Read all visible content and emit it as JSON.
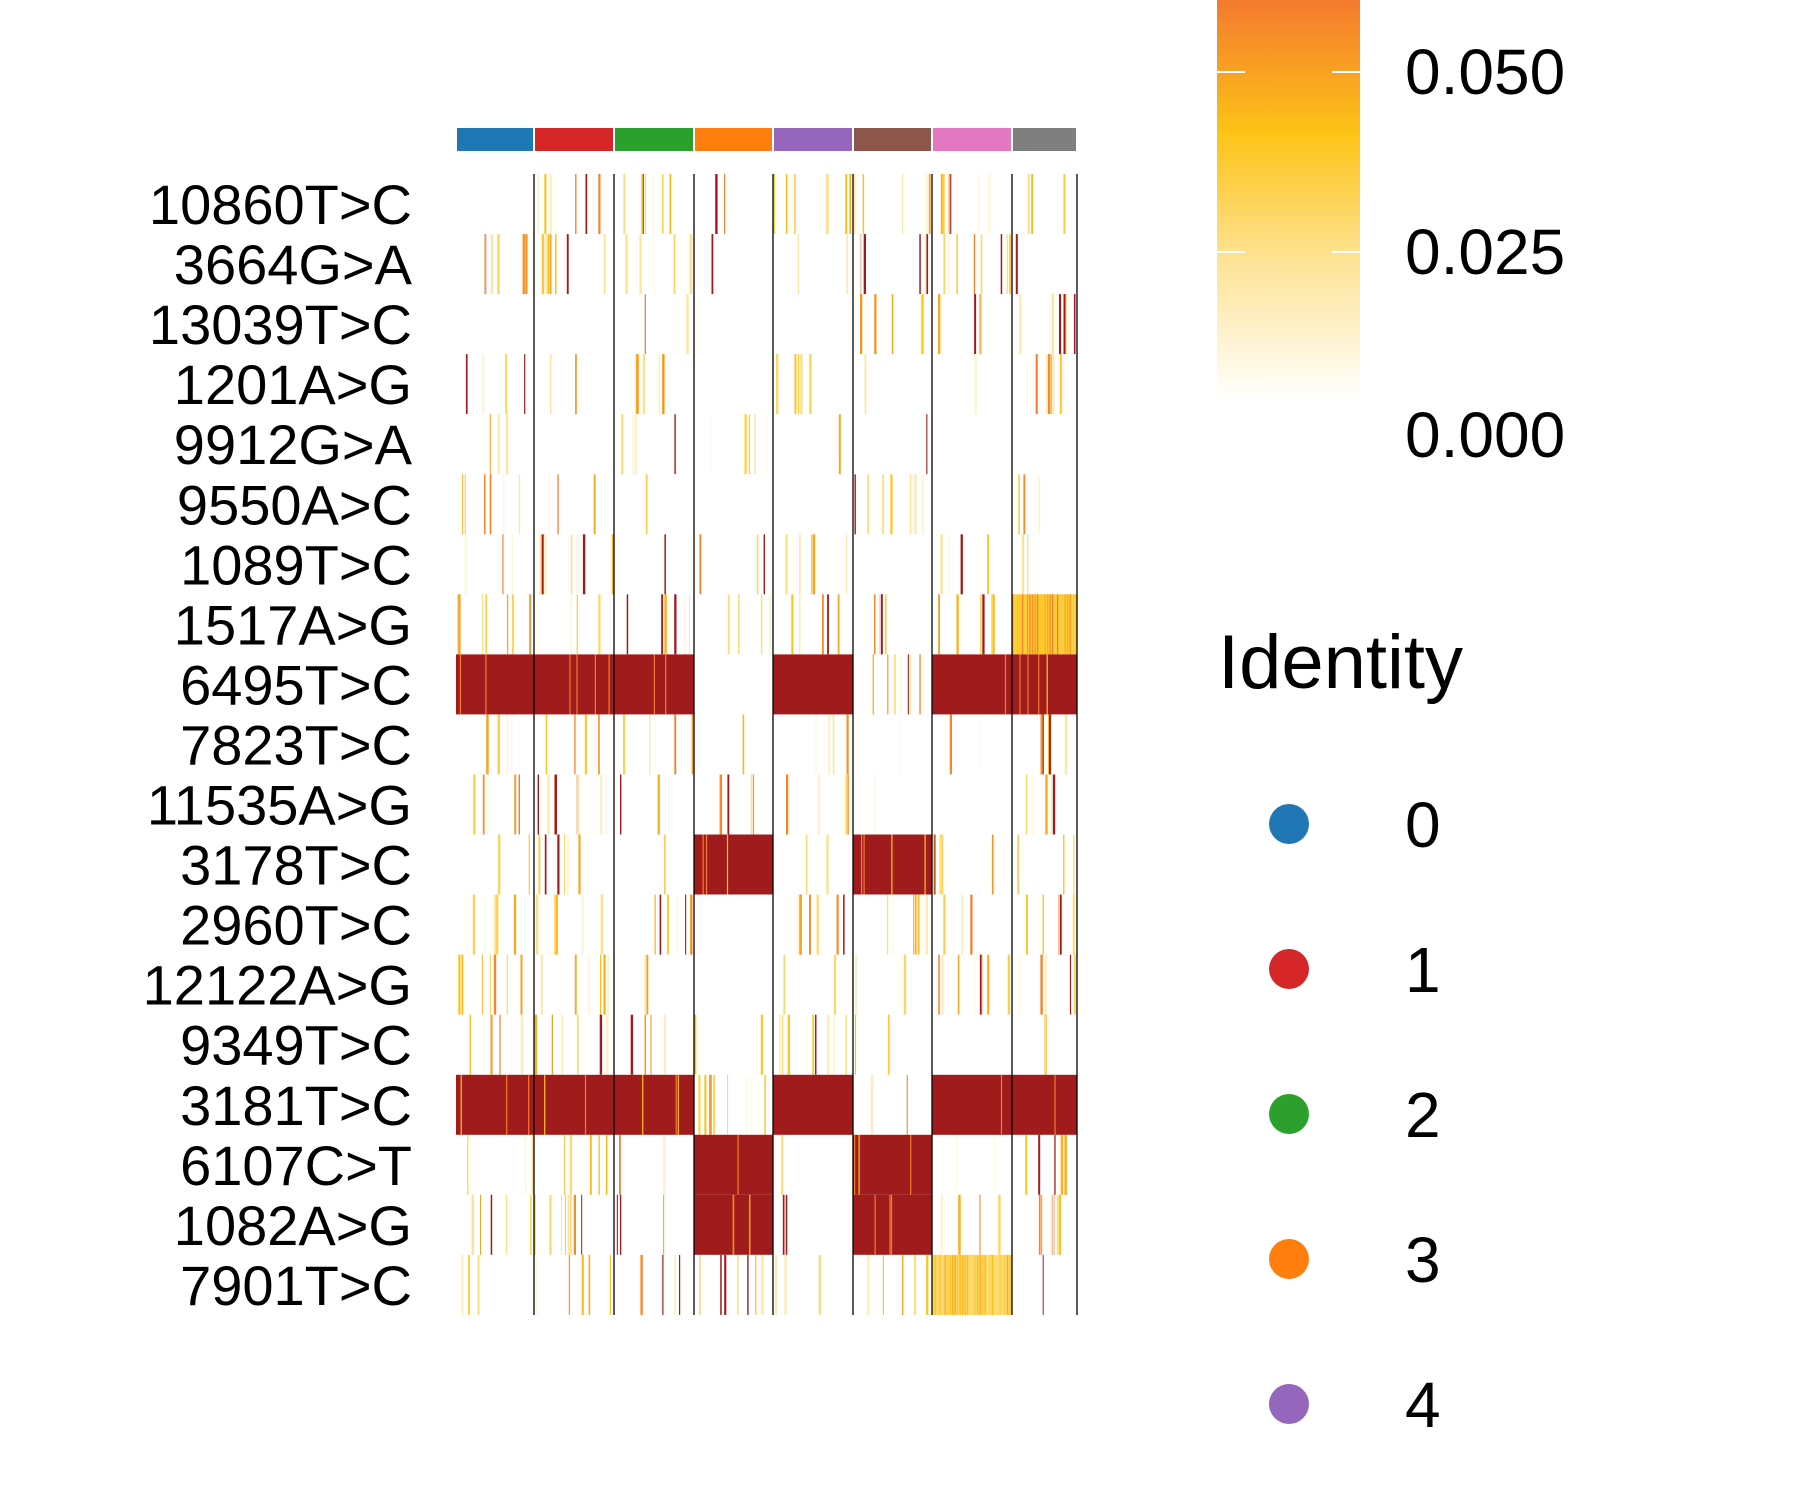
{
  "chart_data": {
    "type": "heatmap",
    "row_labels": [
      "10860T>C",
      "3664G>A",
      "13039T>C",
      "1201A>G",
      "9912G>A",
      "9550A>C",
      "1089T>C",
      "1517A>G",
      "6495T>C",
      "7823T>C",
      "11535A>G",
      "3178T>C",
      "2960T>C",
      "12122A>G",
      "9349T>C",
      "3181T>C",
      "6107C>T",
      "1082A>G",
      "7901T>C"
    ],
    "identity_groups": [
      "0",
      "1",
      "2",
      "3",
      "4",
      "5",
      "6",
      "7"
    ],
    "identity_colors": [
      "#1f77b4",
      "#d62728",
      "#2ca02c",
      "#ff7f0e",
      "#9467bd",
      "#8c564b",
      "#e377c2",
      "#7f7f7f"
    ],
    "color_scale": {
      "breaks": [
        0.0,
        0.025,
        0.05
      ],
      "tick_labels": [
        "0.000",
        "0.025",
        "0.050"
      ],
      "colors": [
        "#ffffff",
        "#fde49a",
        "#fdc317",
        "#f47a2e"
      ],
      "high_color": "#a01c1c"
    },
    "saturated_blocks": [
      {
        "row": "6495T>C",
        "groups": [
          "0",
          "1",
          "2",
          "4",
          "6",
          "7"
        ]
      },
      {
        "row": "3178T>C",
        "groups": [
          "3",
          "5"
        ]
      },
      {
        "row": "3181T>C",
        "groups": [
          "0",
          "1",
          "2",
          "4",
          "6",
          "7"
        ]
      },
      {
        "row": "6107C>T",
        "groups": [
          "3",
          "5"
        ]
      },
      {
        "row": "1082A>G",
        "groups": [
          "3",
          "5"
        ]
      }
    ],
    "moderate_blocks": [
      {
        "row": "1517A>G",
        "group": "7",
        "level": 0.045
      },
      {
        "row": "7901T>C",
        "group": "6",
        "level": 0.035
      }
    ],
    "legend": {
      "identity_title": "Identity",
      "identity_entries": [
        "0",
        "1",
        "2",
        "3",
        "4"
      ],
      "placement": "right"
    },
    "grid": false
  }
}
